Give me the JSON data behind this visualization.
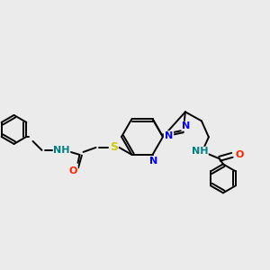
{
  "background_color": "#ebebeb",
  "bond_color": "#000000",
  "atom_colors": {
    "N": "#0000ff",
    "O": "#ff2200",
    "S": "#cccc00",
    "NH": "#008080",
    "C": "#000000"
  }
}
